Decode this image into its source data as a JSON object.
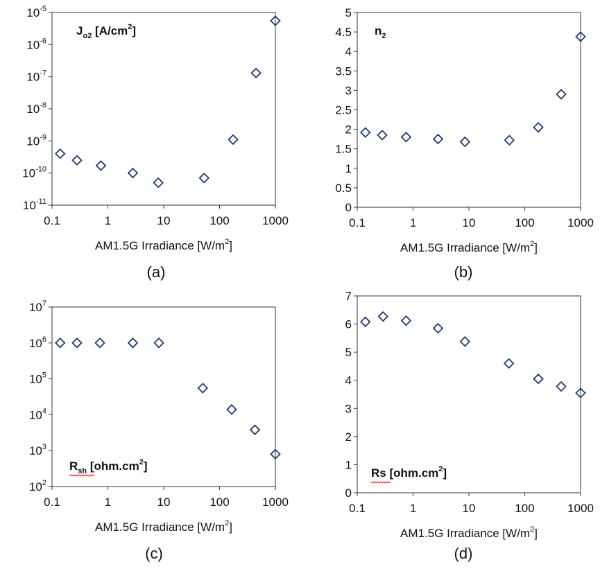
{
  "chart_data": [
    {
      "type": "scatter",
      "caption": "(a)",
      "title": {
        "base": "J",
        "sub": "o2",
        "rest": " [A/cm",
        "sup": "2",
        "end": "]"
      },
      "xlabel": {
        "base": "AM1.5G Irradiance [W/m",
        "sup": "2",
        "end": "]"
      },
      "xscale": "log",
      "yscale": "log",
      "xlim": [
        0.1,
        1000
      ],
      "ylim_exp": [
        -11,
        -5
      ],
      "xticks": [
        "0.1",
        "1",
        "10",
        "100",
        "1000"
      ],
      "yticks": [
        {
          "base": "10",
          "exp": "-11"
        },
        {
          "base": "10",
          "exp": "-10"
        },
        {
          "base": "10",
          "exp": "-9"
        },
        {
          "base": "10",
          "exp": "-8"
        },
        {
          "base": "10",
          "exp": "-7"
        },
        {
          "base": "10",
          "exp": "-6"
        },
        {
          "base": "10",
          "exp": "-5"
        }
      ],
      "marker": "open-diamond",
      "x": [
        0.14,
        0.28,
        0.75,
        2.8,
        8,
        53,
        175,
        450,
        1000
      ],
      "y": [
        4e-10,
        2.5e-10,
        1.7e-10,
        1e-10,
        5e-11,
        7e-11,
        1.1e-09,
        1.3e-07,
        5.5e-06
      ]
    },
    {
      "type": "scatter",
      "caption": "(b)",
      "title": {
        "base": "n",
        "sub": "2",
        "rest": "",
        "sup": "",
        "end": ""
      },
      "xlabel": {
        "base": "AM1.5G Irradiance [W/m",
        "sup": "2",
        "end": "]"
      },
      "xscale": "log",
      "yscale": "linear",
      "xlim": [
        0.1,
        1000
      ],
      "ylim": [
        0,
        5
      ],
      "xticks": [
        "0.1",
        "1",
        "10",
        "100",
        "1000"
      ],
      "yticks": [
        "0",
        "0.5",
        "1",
        "1.5",
        "2",
        "2.5",
        "3",
        "3.5",
        "4",
        "4.5",
        "5"
      ],
      "marker": "open-diamond",
      "x": [
        0.14,
        0.28,
        0.75,
        2.8,
        8.5,
        53,
        175,
        450,
        1000
      ],
      "y": [
        1.92,
        1.85,
        1.8,
        1.75,
        1.68,
        1.72,
        2.05,
        2.9,
        4.38
      ]
    },
    {
      "type": "scatter",
      "caption": "(c)",
      "title": {
        "base": "R",
        "sub": "sh",
        "rest": " [ohm.cm",
        "sup": "2",
        "end": "]"
      },
      "xlabel": {
        "base": "AM1.5G Irradiance [W/m",
        "sup": "2",
        "end": "]"
      },
      "xscale": "log",
      "yscale": "log",
      "xlim": [
        0.1,
        1000
      ],
      "ylim_exp": [
        2,
        7
      ],
      "xticks": [
        "0.1",
        "1",
        "10",
        "100",
        "1000"
      ],
      "yticks": [
        {
          "base": "10",
          "exp": "2"
        },
        {
          "base": "10",
          "exp": "3"
        },
        {
          "base": "10",
          "exp": "4"
        },
        {
          "base": "10",
          "exp": "5"
        },
        {
          "base": "10",
          "exp": "6"
        },
        {
          "base": "10",
          "exp": "7"
        }
      ],
      "marker": "open-diamond",
      "x": [
        0.14,
        0.28,
        0.72,
        2.8,
        8.2,
        50,
        165,
        430,
        1000
      ],
      "y": [
        1000000.0,
        1000000.0,
        1000000.0,
        1000000.0,
        1000000.0,
        55000,
        14000,
        3800,
        800
      ]
    },
    {
      "type": "scatter",
      "caption": "(d)",
      "title": {
        "base": "Rs",
        "sub": "",
        "rest": " [ohm.cm",
        "sup": "2",
        "end": "]"
      },
      "xlabel": {
        "base": "AM1.5G Irradiance [W/m",
        "sup": "2",
        "end": "]"
      },
      "xscale": "log",
      "yscale": "linear",
      "xlim": [
        0.1,
        1000
      ],
      "ylim": [
        0,
        7
      ],
      "xticks": [
        "0.1",
        "1",
        "10",
        "100",
        "1000"
      ],
      "yticks": [
        "0",
        "1",
        "2",
        "3",
        "4",
        "5",
        "6",
        "7"
      ],
      "marker": "open-diamond",
      "x": [
        0.14,
        0.29,
        0.75,
        2.8,
        8.5,
        52,
        175,
        450,
        1000
      ],
      "y": [
        6.08,
        6.27,
        6.12,
        5.85,
        5.38,
        4.6,
        4.05,
        3.78,
        3.55
      ]
    }
  ]
}
